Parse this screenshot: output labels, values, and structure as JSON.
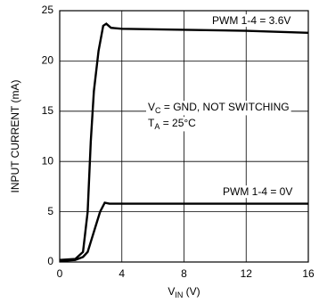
{
  "chart_data": {
    "type": "line",
    "x_label": [
      "V",
      "IN",
      " (V)"
    ],
    "y_label": "INPUT CURRENT (mA)",
    "annotations": [
      {
        "parts": [
          "PWM 1-4 = 3.6V"
        ]
      },
      {
        "parts": [
          "PWM 1-4 = 0V"
        ]
      },
      {
        "parts": [
          "V",
          "C",
          " = GND, NOT SWITCHING"
        ]
      },
      {
        "parts": [
          "T",
          "A",
          " = 25°C"
        ]
      }
    ],
    "series": [
      {
        "color": "#000000",
        "x": [
          0,
          1,
          1.5,
          1.8,
          2.0,
          2.2,
          2.5,
          2.8,
          3.0,
          3.3,
          4,
          8,
          12,
          16
        ],
        "values": [
          0.2,
          0.3,
          1,
          5,
          12,
          17,
          21,
          23.5,
          23.7,
          23.3,
          23.2,
          23.1,
          23.0,
          22.8
        ]
      },
      {
        "color": "#000000",
        "x": [
          0,
          1,
          1.5,
          1.8,
          2.0,
          2.3,
          2.6,
          2.9,
          3.2,
          4,
          8,
          12,
          16
        ],
        "values": [
          0.1,
          0.2,
          0.5,
          1,
          2,
          3.5,
          5,
          5.9,
          5.8,
          5.8,
          5.8,
          5.8,
          5.8
        ]
      }
    ],
    "xlim": [
      0,
      16
    ],
    "xticks": [
      0,
      4,
      8,
      12,
      16
    ],
    "ylim": [
      0,
      25
    ],
    "yticks": [
      0,
      5,
      10,
      15,
      20,
      25
    ],
    "grid": true
  }
}
